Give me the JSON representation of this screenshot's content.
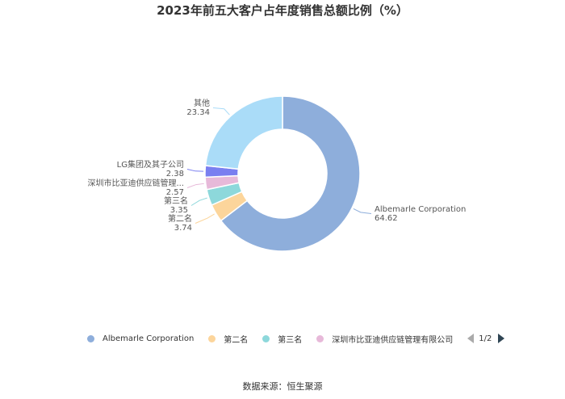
{
  "chart_data": {
    "type": "pie",
    "title": "2023年前五大客户占年度销售总额比例（%）",
    "slices": [
      {
        "name": "Albemarle Corporation",
        "label": "Albemarle Corporation",
        "value": 64.62,
        "value_text": "64.62",
        "color": "#8eaedb"
      },
      {
        "name": "第二名",
        "label": "第二名",
        "value": 3.74,
        "value_text": "3.74",
        "color": "#fcd59b"
      },
      {
        "name": "第三名",
        "label": "第三名",
        "value": 3.35,
        "value_text": "3.35",
        "color": "#8dd8db"
      },
      {
        "name": "深圳市比亚迪供应链管理有限公司",
        "label": "深圳市比亚迪供应链管理...",
        "value": 2.57,
        "value_text": "2.57",
        "color": "#e7b9d9"
      },
      {
        "name": "LG集团及其子公司",
        "label": "LG集团及其子公司",
        "value": 2.38,
        "value_text": "2.38",
        "color": "#7a7ff0"
      },
      {
        "name": "其他",
        "label": "其他",
        "value": 23.34,
        "value_text": "23.34",
        "color": "#aadcf8"
      }
    ]
  },
  "legend": {
    "items": [
      {
        "label": "Albemarle Corporation",
        "color": "#8eaedb"
      },
      {
        "label": "第二名",
        "color": "#fcd59b"
      },
      {
        "label": "第三名",
        "color": "#8dd8db"
      },
      {
        "label": "深圳市比亚迪供应链管理有限公司",
        "color": "#e7b9d9"
      }
    ],
    "page": "1/2"
  },
  "source": "数据来源：恒生聚源"
}
